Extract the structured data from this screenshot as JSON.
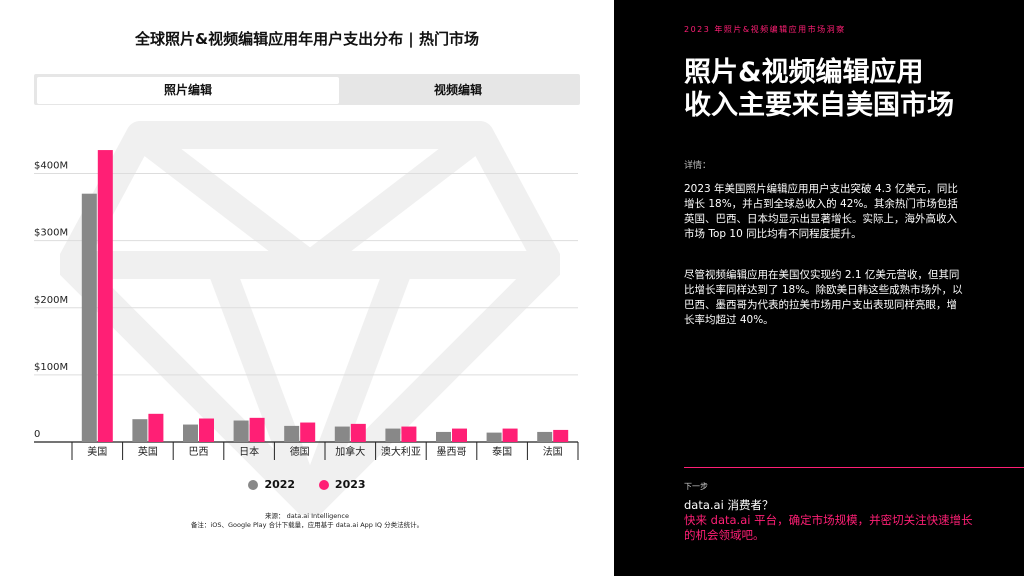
{
  "left": {
    "title": "全球照片&视频编辑应用年用户支出分布 | 热门市场",
    "tabs": [
      {
        "label": "照片编辑",
        "active": true
      },
      {
        "label": "视频编辑",
        "active": false
      }
    ],
    "source": "来源：  data.ai Intelligence",
    "note": "备注：iOS、Google Play 合计下载量，应用基于 data.ai App IQ 分类法统计。"
  },
  "chart_data": {
    "type": "bar",
    "categories": [
      "美国",
      "英国",
      "巴西",
      "日本",
      "德国",
      "加拿大",
      "澳大利亚",
      "墨西哥",
      "泰国",
      "法国"
    ],
    "series": [
      {
        "name": "2022",
        "color": "#888888",
        "values": [
          370,
          34,
          26,
          32,
          24,
          23,
          20,
          15,
          14,
          15
        ]
      },
      {
        "name": "2023",
        "color": "#ff1f75",
        "values": [
          435,
          42,
          35,
          36,
          29,
          27,
          23,
          20,
          20,
          18
        ]
      }
    ],
    "y_ticks": [
      "0",
      "$100M",
      "$200M",
      "$300M",
      "$400M"
    ],
    "ylim": [
      0,
      450
    ],
    "grid": true,
    "legend": "bottom"
  },
  "right": {
    "header": "2023 年照片&视频编辑应用市场洞察",
    "title_line1": "照片&视频编辑应用",
    "title_line2": "收入主要来自美国市场",
    "details_label": "详情：",
    "paragraph1": "2023 年美国照片编辑应用用户支出突破 4.3 亿美元，同比增长 18%，并占到全球总收入的 42%。其余热门市场包括英国、巴西、日本均显示出显著增长。实际上，海外高收入市场 Top 10 同比均有不同程度提升。",
    "paragraph2": "尽管视频编辑应用在美国仅实现约 2.1 亿美元营收，但其同比增长率同样达到了 18%。除欧美日韩这些成熟市场外，以巴西、墨西哥为代表的拉美市场用户支出表现同样亮眼，增长率均超过 40%。",
    "next_label": "下一步",
    "question": "data.ai 消费者？",
    "cta": "快来 data.ai 平台，确定市场规模，并密切关注快速增长的机会领域吧。"
  }
}
